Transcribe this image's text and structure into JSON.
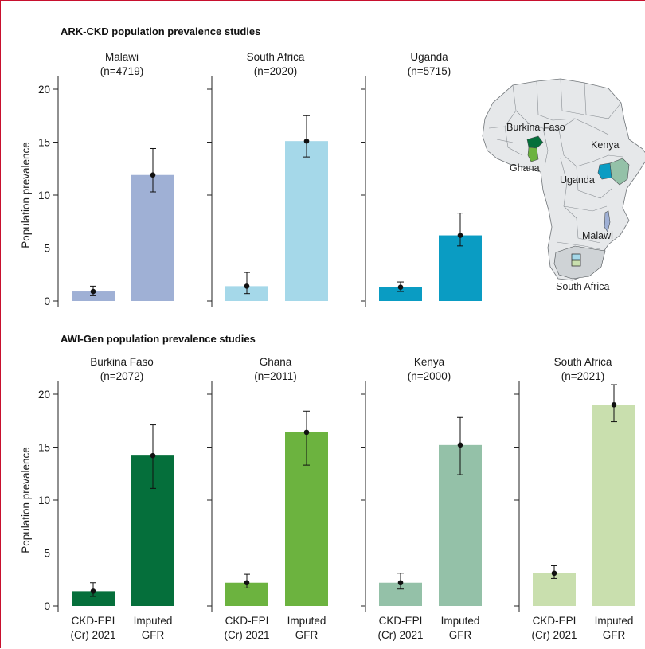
{
  "figure": {
    "map_labels": {
      "burkina_faso": "Burkina Faso",
      "ghana": "Ghana",
      "kenya": "Kenya",
      "uganda": "Uganda",
      "malawi": "Malawi",
      "south_africa": "South Africa"
    }
  },
  "chart_data": [
    {
      "type": "bar",
      "group_title": "ARK-CKD population prevalence studies",
      "title": "Malawi",
      "subtitle": "(n=4719)",
      "ylabel": "Population prevalence",
      "ylim": [
        0,
        20
      ],
      "yticks": [
        "0",
        "5",
        "10",
        "15",
        "20"
      ],
      "categories": [
        "",
        ""
      ],
      "values": [
        0.9,
        11.9
      ],
      "ci_low": [
        0.5,
        10.3
      ],
      "ci_high": [
        1.4,
        14.4
      ],
      "colors": [
        "#9fb0d5",
        "#9fb0d5"
      ]
    },
    {
      "type": "bar",
      "title": "South Africa",
      "subtitle": "(n=2020)",
      "ylim": [
        0,
        20
      ],
      "categories": [
        "",
        ""
      ],
      "values": [
        1.4,
        15.1
      ],
      "ci_low": [
        0.7,
        13.6
      ],
      "ci_high": [
        2.7,
        17.5
      ],
      "colors": [
        "#a5d8e9",
        "#a5d8e9"
      ]
    },
    {
      "type": "bar",
      "title": "Uganda",
      "subtitle": "(n=5715)",
      "ylim": [
        0,
        20
      ],
      "categories": [
        "",
        ""
      ],
      "values": [
        1.3,
        6.2
      ],
      "ci_low": [
        0.9,
        5.2
      ],
      "ci_high": [
        1.8,
        8.3
      ],
      "colors": [
        "#0a9cc3",
        "#0a9cc3"
      ]
    },
    {
      "type": "bar",
      "group_title": "AWI-Gen population prevalence studies",
      "title": "Burkina Faso",
      "subtitle": "(n=2072)",
      "ylabel": "Population prevalence",
      "ylim": [
        0,
        20
      ],
      "yticks": [
        "0",
        "5",
        "10",
        "15",
        "20"
      ],
      "categories": [
        "CKD-EPI\n(Cr) 2021",
        "Imputed\nGFR"
      ],
      "values": [
        1.4,
        14.2
      ],
      "ci_low": [
        0.9,
        11.1
      ],
      "ci_high": [
        2.2,
        17.1
      ],
      "colors": [
        "#056f3b",
        "#056f3b"
      ]
    },
    {
      "type": "bar",
      "title": "Ghana",
      "subtitle": "(n=2011)",
      "ylim": [
        0,
        20
      ],
      "categories": [
        "CKD-EPI\n(Cr) 2021",
        "Imputed\nGFR"
      ],
      "values": [
        2.2,
        16.4
      ],
      "ci_low": [
        1.7,
        13.3
      ],
      "ci_high": [
        3.0,
        18.4
      ],
      "colors": [
        "#6cb33f",
        "#6cb33f"
      ]
    },
    {
      "type": "bar",
      "title": "Kenya",
      "subtitle": "(n=2000)",
      "ylim": [
        0,
        20
      ],
      "categories": [
        "CKD-EPI\n(Cr) 2021",
        "Imputed\nGFR"
      ],
      "values": [
        2.2,
        15.2
      ],
      "ci_low": [
        1.6,
        12.4
      ],
      "ci_high": [
        3.1,
        17.8
      ],
      "colors": [
        "#94c1a8",
        "#94c1a8"
      ]
    },
    {
      "type": "bar",
      "title": "South Africa",
      "subtitle": "(n=2021)",
      "ylim": [
        0,
        20
      ],
      "categories": [
        "CKD-EPI\n(Cr) 2021",
        "Imputed\nGFR"
      ],
      "values": [
        3.1,
        19.0
      ],
      "ci_low": [
        2.6,
        17.4
      ],
      "ci_high": [
        3.8,
        20.9
      ],
      "colors": [
        "#c9dfae",
        "#c9dfae"
      ]
    }
  ]
}
